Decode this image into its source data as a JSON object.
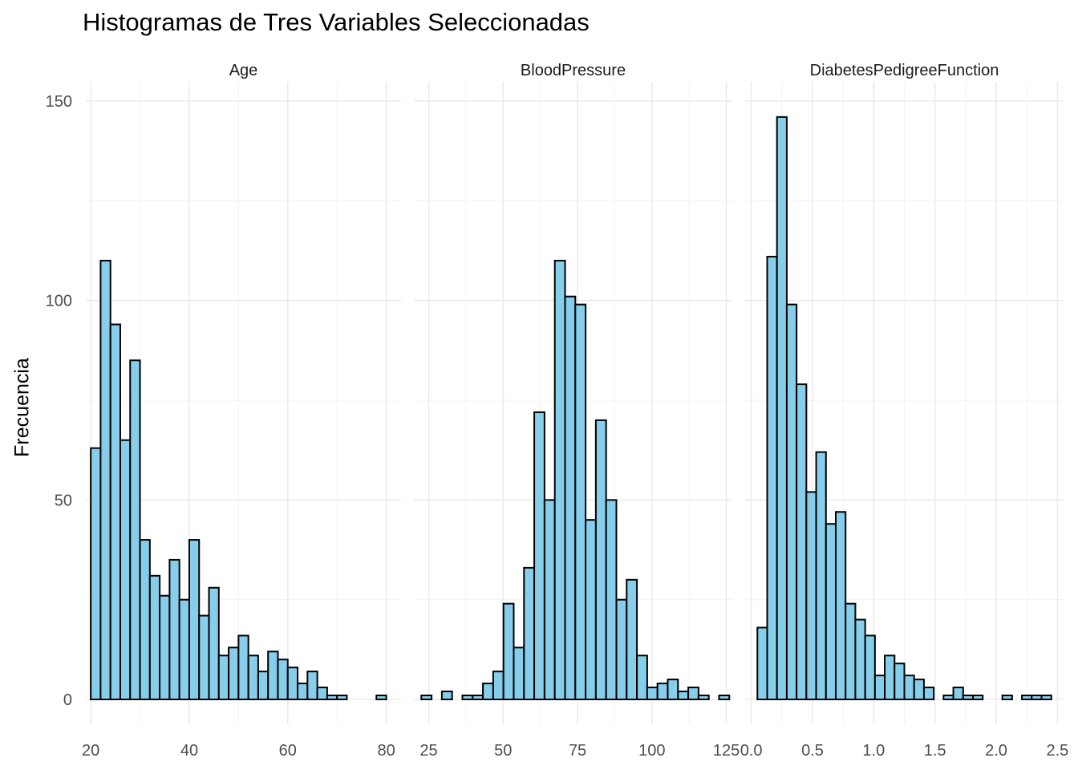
{
  "chart_data": {
    "type": "bar",
    "title": "Histogramas de Tres Variables Seleccionadas",
    "xlabel": "",
    "ylabel": "Frecuencia",
    "grid": true,
    "ylim": [
      0,
      150
    ],
    "yticks": [
      0,
      50,
      100,
      150
    ],
    "fill_color": "#87CEEB",
    "edge_color": "#000000",
    "facets": [
      {
        "name": "Age",
        "xlim": [
          19.0,
          83.0
        ],
        "xticks": [
          20,
          40,
          60,
          80
        ],
        "bin_start": 20.0,
        "bin_width": 2.0,
        "values": [
          63,
          110,
          94,
          65,
          85,
          40,
          31,
          26,
          35,
          25,
          40,
          21,
          28,
          11,
          13,
          16,
          11,
          7,
          12,
          10,
          8,
          4,
          7,
          3,
          1,
          1,
          0,
          0,
          0,
          1
        ]
      },
      {
        "name": "BloodPressure",
        "xlim": [
          20.0,
          127.0
        ],
        "xticks": [
          25,
          50,
          75,
          100,
          125
        ],
        "bin_start": 22.5,
        "bin_width": 3.45,
        "values": [
          1,
          0,
          2,
          0,
          1,
          1,
          4,
          7,
          24,
          13,
          33,
          72,
          50,
          110,
          101,
          99,
          45,
          70,
          50,
          25,
          30,
          11,
          3,
          4,
          5,
          2,
          3,
          1,
          0,
          1
        ]
      },
      {
        "name": "DiabetesPedigreeFunction",
        "xlim": [
          -0.05,
          2.55
        ],
        "xticks": [
          "0.0",
          "0.5",
          "1.0",
          "1.5",
          "2.0",
          "2.5"
        ],
        "bin_start": 0.05,
        "bin_width": 0.08,
        "values": [
          18,
          111,
          146,
          99,
          79,
          52,
          62,
          44,
          47,
          24,
          20,
          16,
          6,
          11,
          9,
          6,
          5,
          3,
          0,
          1,
          3,
          1,
          1,
          0,
          0,
          1,
          0,
          1,
          1,
          1
        ]
      }
    ]
  }
}
